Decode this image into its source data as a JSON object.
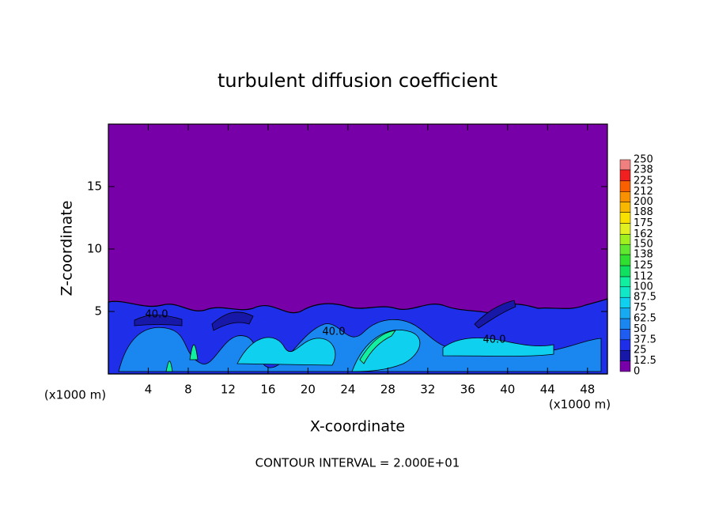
{
  "chart_data": {
    "type": "contour",
    "title": "turbulent diffusion coefficient",
    "x_label": "X-coordinate",
    "y_label": "Z-coordinate",
    "x_unit": "(x1000 m)",
    "annotation": "CONTOUR INTERVAL = 2.000E+01",
    "contour_labels": [
      "40.0",
      "40.0",
      "40.0"
    ],
    "xlim": [
      0,
      50
    ],
    "xticks": [
      4,
      8,
      12,
      16,
      20,
      24,
      28,
      32,
      36,
      40,
      44,
      48
    ],
    "ylim": [
      0,
      20
    ],
    "yticks": [
      5,
      10,
      15
    ],
    "colorbar": {
      "levels": [
        0,
        12.5,
        25,
        37.5,
        50,
        62.5,
        75,
        87.5,
        100,
        112,
        125,
        138,
        150,
        162,
        175,
        188,
        200,
        212,
        225,
        238,
        250
      ],
      "colors": [
        "#7800a8",
        "#1818a8",
        "#1f2ee8",
        "#1f5cf0",
        "#1a86f0",
        "#18aaf0",
        "#10d0f0",
        "#10e8c8",
        "#10f0a0",
        "#10e060",
        "#30e030",
        "#60e830",
        "#a0f020",
        "#e0f020",
        "#f8e000",
        "#f8b800",
        "#f89000",
        "#f86000",
        "#f02020",
        "#f08080"
      ]
    }
  }
}
